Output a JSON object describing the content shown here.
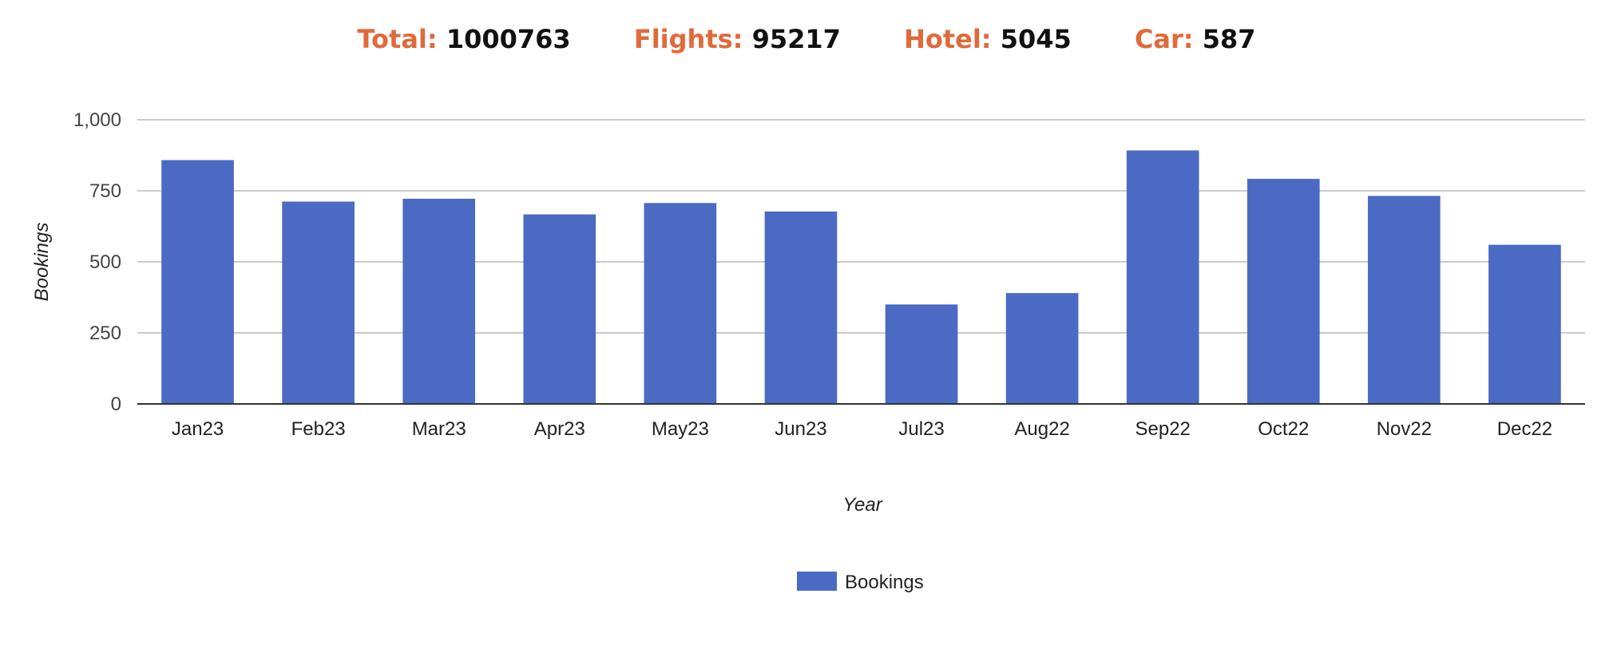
{
  "stats": {
    "total": {
      "label": "Total:",
      "value": "1000763"
    },
    "flights": {
      "label": "Flights:",
      "value": "95217"
    },
    "hotel": {
      "label": "Hotel:",
      "value": "5045"
    },
    "car": {
      "label": "Car:",
      "value": "587"
    },
    "label_color": "#e06a3a"
  },
  "chart_data": {
    "type": "bar",
    "categories": [
      "Jan23",
      "Feb23",
      "Mar23",
      "Apr23",
      "May23",
      "Jun23",
      "Jul23",
      "Aug22",
      "Sep22",
      "Oct22",
      "Nov22",
      "Dec22"
    ],
    "series": [
      {
        "name": "Bookings",
        "color": "#4a6ac4",
        "values": [
          858,
          712,
          722,
          667,
          707,
          677,
          350,
          390,
          892,
          792,
          732,
          560
        ]
      }
    ],
    "xlabel": "Year",
    "ylabel": "Bookings",
    "ylim": [
      0,
      1000
    ],
    "yticks": [
      0,
      250,
      500,
      750,
      1000
    ],
    "ytick_labels": [
      "0",
      "250",
      "500",
      "750",
      "1,000"
    ],
    "grid": true,
    "legend": "bottom"
  }
}
